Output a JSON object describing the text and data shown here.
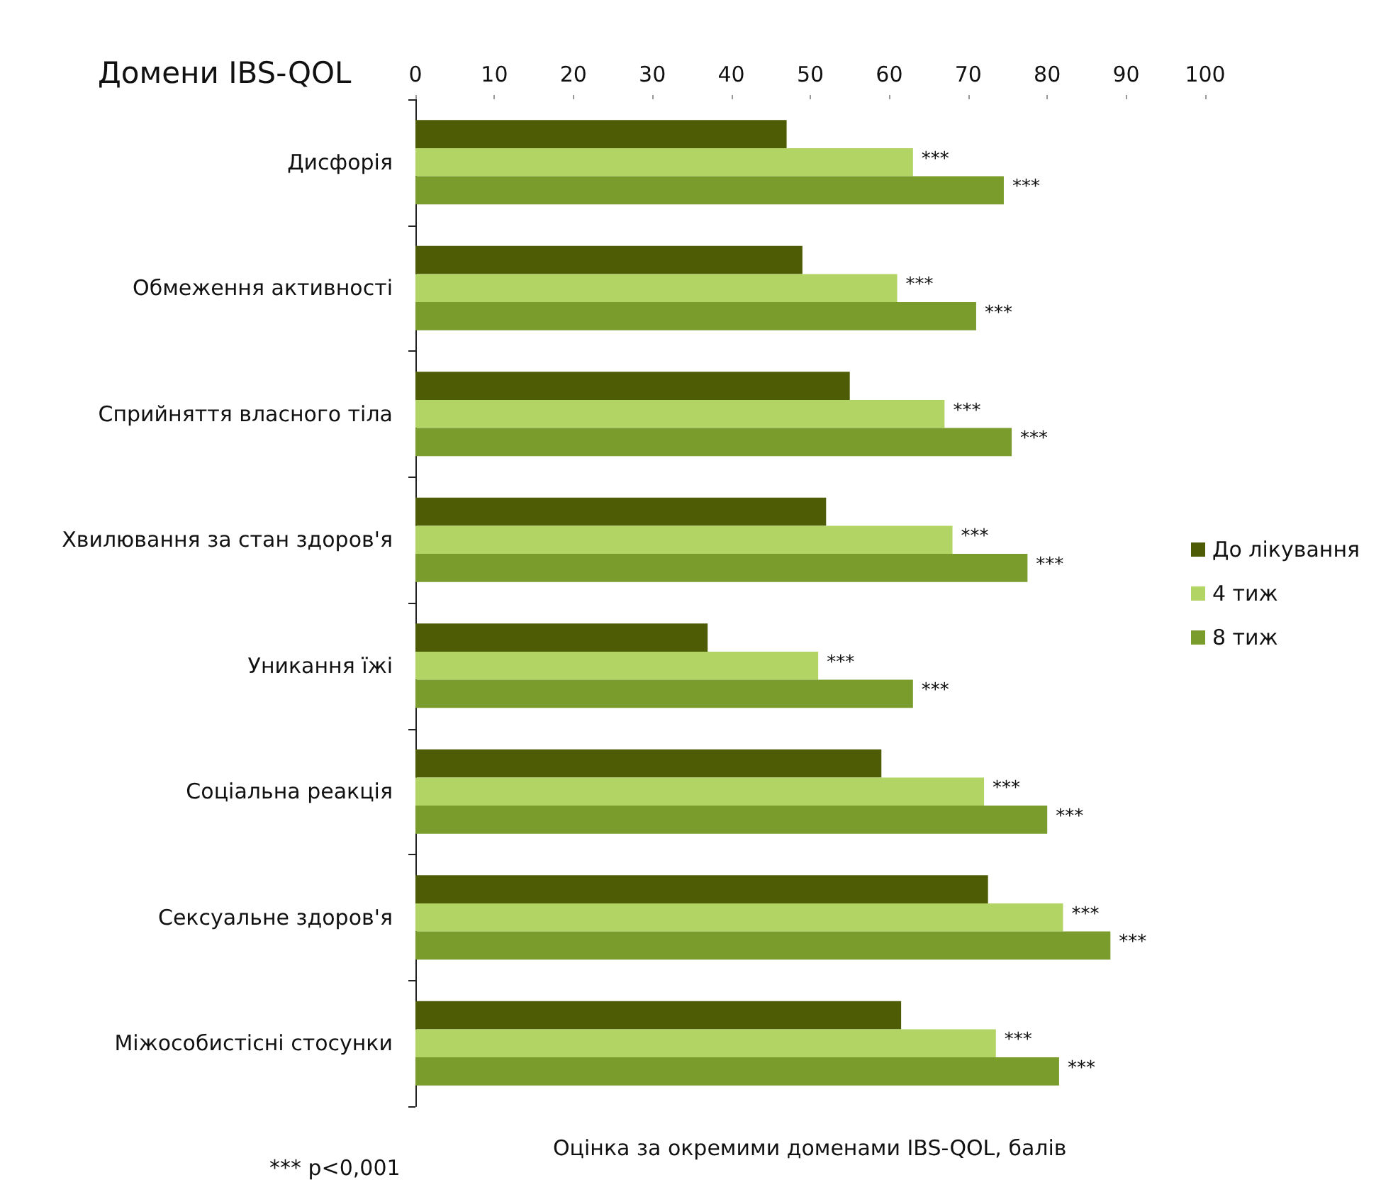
{
  "chart_data": {
    "type": "bar",
    "orientation": "horizontal",
    "title": "Домени IBS-QOL",
    "xlabel": "Оцінка за окремими доменами IBS-QOL, балів",
    "categories": [
      "Дисфорія",
      "Обмеження активності",
      "Сприйняття власного тіла",
      "Хвилювання за стан здоров'я",
      "Уникання їжі",
      "Соціальна реакція",
      "Сексуальне здоров'я",
      "Міжособистісні стосунки"
    ],
    "series": [
      {
        "name": "До лікування",
        "color": "#4d5c05",
        "values": [
          47,
          49,
          55,
          52,
          37,
          59,
          72.5,
          61.5
        ]
      },
      {
        "name": "4 тиж",
        "color": "#b2d465",
        "values": [
          63,
          61,
          67,
          68,
          51,
          72,
          82,
          73.5
        ],
        "value_labels": [
          "***",
          "***",
          "***",
          "***",
          "***",
          "***",
          "***",
          "***"
        ]
      },
      {
        "name": "8 тиж",
        "color": "#7a9c2c",
        "values": [
          74.5,
          71,
          75.5,
          77.5,
          63,
          80,
          88,
          81.5
        ],
        "value_labels": [
          "***",
          "***",
          "***",
          "***",
          "***",
          "***",
          "***",
          "***"
        ]
      }
    ],
    "xlim": [
      0,
      100
    ],
    "xticks": [
      0,
      10,
      20,
      30,
      40,
      50,
      60,
      70,
      80,
      90,
      100
    ],
    "grid": false,
    "legend": "right",
    "annotations": [
      "*** p<0,001"
    ]
  }
}
